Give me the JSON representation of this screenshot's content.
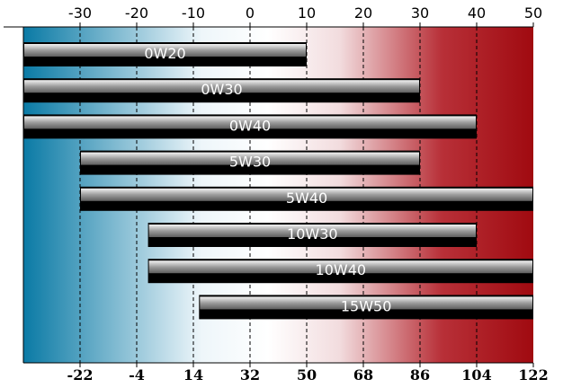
{
  "chart_data": {
    "type": "bar",
    "orientation": "horizontal",
    "categories": [
      "0W20",
      "0W30",
      "0W40",
      "5W30",
      "5W40",
      "10W30",
      "10W40",
      "15W50"
    ],
    "series": [
      {
        "ranges": [
          [
            -40,
            10
          ],
          [
            -40,
            30
          ],
          [
            -40,
            40
          ],
          [
            -30,
            30
          ],
          [
            -30,
            50
          ],
          [
            -18,
            40
          ],
          [
            -18,
            50
          ],
          [
            -9,
            50
          ]
        ]
      }
    ],
    "x_top": {
      "ticks": [
        -30,
        -20,
        -10,
        0,
        10,
        20,
        30,
        40,
        50
      ]
    },
    "x_bottom": {
      "ticks": [
        -22,
        -4,
        14,
        32,
        50,
        68,
        86,
        104,
        122
      ]
    },
    "xlim": [
      -40,
      50
    ],
    "grid": "vertical dashed",
    "background_gradient": [
      "#0a7aa5",
      "#ffffff",
      "#a00a10"
    ],
    "bar_color": "#000000"
  }
}
